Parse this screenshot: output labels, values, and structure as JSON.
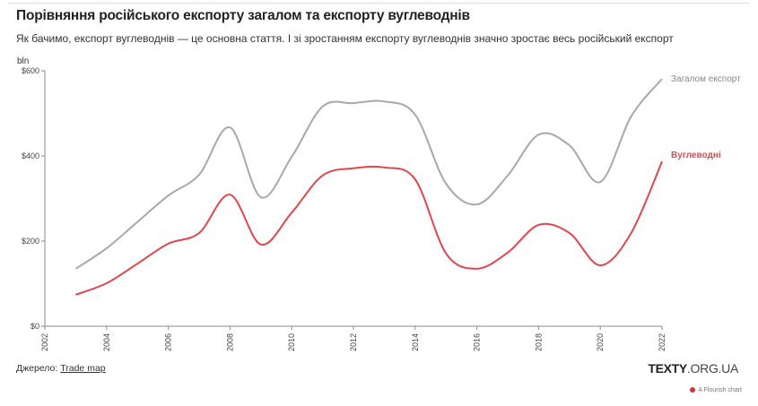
{
  "title": "Порівняння російського експорту загалом та експорту вуглеводнів",
  "subtitle": "Як бачимо, експорт вуглеводнів — це основна стаття. І зі зростанням експорту вуглеводнів значно зростає весь російський експорт",
  "source_label": "Джерело:",
  "source_link": "Trade map",
  "logo_bold": "TEXTY",
  "logo_rest": ".ORG.UA",
  "credit": "A Flourish chart",
  "chart_data": {
    "type": "line",
    "title": "Порівняння російського експорту загалом та експорту вуглеводнів",
    "ylabel": "bln",
    "ylim": [
      0,
      600
    ],
    "yticks": [
      {
        "v": 0,
        "label": "$0"
      },
      {
        "v": 200,
        "label": "$200"
      },
      {
        "v": 400,
        "label": "$400"
      },
      {
        "v": 600,
        "label": "$600"
      }
    ],
    "xlim": [
      2002,
      2022
    ],
    "xticks": [
      "2002",
      "2004",
      "2006",
      "2008",
      "2010",
      "2012",
      "2014",
      "2016",
      "2018",
      "2020",
      "2022"
    ],
    "x": [
      2003,
      2004,
      2005,
      2006,
      2007,
      2008,
      2009,
      2010,
      2011,
      2012,
      2013,
      2014,
      2015,
      2016,
      2017,
      2018,
      2019,
      2020,
      2021,
      2022
    ],
    "series": [
      {
        "name": "Загалом експорт",
        "color": "#a8a8a8",
        "values": [
          135,
          183,
          245,
          307,
          356,
          467,
          303,
          398,
          516,
          524,
          528,
          497,
          335,
          286,
          354,
          450,
          425,
          339,
          493,
          581
        ]
      },
      {
        "name": "Вуглеводні",
        "color": "#e0474c",
        "values": [
          74,
          101,
          147,
          194,
          219,
          309,
          192,
          267,
          354,
          371,
          373,
          345,
          171,
          135,
          173,
          238,
          219,
          143,
          219,
          387
        ]
      }
    ]
  }
}
